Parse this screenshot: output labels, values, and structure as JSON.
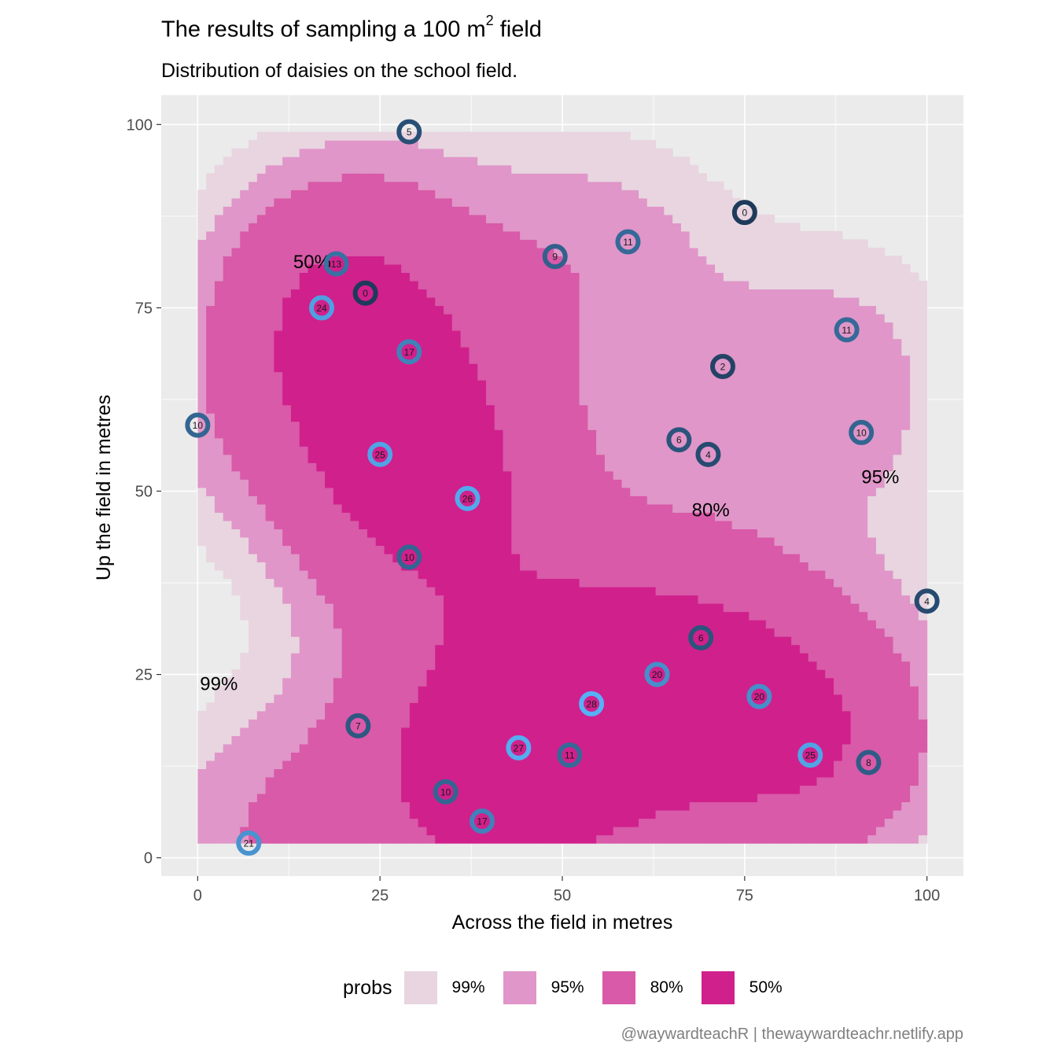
{
  "title": {
    "main": "The results of sampling a 100 m",
    "sup": "2",
    "tail": " field"
  },
  "subtitle": "Distribution of daisies on the school field.",
  "caption": "@waywardteachR | thewaywardteachr.netlify.app",
  "legend": {
    "title": "probs",
    "items": [
      {
        "label": "99%",
        "color": "#e8d5e0"
      },
      {
        "label": "95%",
        "color": "#e096c8"
      },
      {
        "label": "80%",
        "color": "#d85aa8"
      },
      {
        "label": "50%",
        "color": "#d0208c"
      }
    ]
  },
  "colors": {
    "panel": "#ebebeb",
    "grid_major": "#ffffff",
    "point_low": "#1f3a5a",
    "point_high": "#56b1f7"
  },
  "chart_data": {
    "type": "density-contour with scatter",
    "xlabel": "Across the field in metres",
    "ylabel": "Up the field in metres",
    "xlim": [
      -5,
      105
    ],
    "ylim": [
      -2.5,
      104
    ],
    "x_ticks": [
      0,
      25,
      50,
      75,
      100
    ],
    "y_ticks": [
      0,
      25,
      50,
      75,
      100
    ],
    "grid": true,
    "legend_position": "bottom",
    "contour_levels": [
      "99%",
      "95%",
      "80%",
      "50%"
    ],
    "points": [
      {
        "x": 29,
        "y": 99,
        "count": 5
      },
      {
        "x": 75,
        "y": 88,
        "count": 0
      },
      {
        "x": 19,
        "y": 81,
        "count": 13
      },
      {
        "x": 49,
        "y": 82,
        "count": 9
      },
      {
        "x": 59,
        "y": 84,
        "count": 11
      },
      {
        "x": 23,
        "y": 77,
        "count": 0
      },
      {
        "x": 17,
        "y": 75,
        "count": 24
      },
      {
        "x": 29,
        "y": 69,
        "count": 17
      },
      {
        "x": 89,
        "y": 72,
        "count": 11
      },
      {
        "x": 72,
        "y": 67,
        "count": 2
      },
      {
        "x": 0,
        "y": 59,
        "count": 10
      },
      {
        "x": 91,
        "y": 58,
        "count": 10
      },
      {
        "x": 66,
        "y": 57,
        "count": 6
      },
      {
        "x": 70,
        "y": 55,
        "count": 4
      },
      {
        "x": 25,
        "y": 55,
        "count": 25
      },
      {
        "x": 37,
        "y": 49,
        "count": 26
      },
      {
        "x": 29,
        "y": 41,
        "count": 10
      },
      {
        "x": 100,
        "y": 35,
        "count": 4
      },
      {
        "x": 69,
        "y": 30,
        "count": 6
      },
      {
        "x": 63,
        "y": 25,
        "count": 20
      },
      {
        "x": 77,
        "y": 22,
        "count": 20
      },
      {
        "x": 54,
        "y": 21,
        "count": 28
      },
      {
        "x": 22,
        "y": 18,
        "count": 7
      },
      {
        "x": 44,
        "y": 15,
        "count": 27
      },
      {
        "x": 51,
        "y": 14,
        "count": 11
      },
      {
        "x": 84,
        "y": 14,
        "count": 25
      },
      {
        "x": 92,
        "y": 13,
        "count": 8
      },
      {
        "x": 34,
        "y": 9,
        "count": 10
      },
      {
        "x": 39,
        "y": 5,
        "count": 17
      },
      {
        "x": 7,
        "y": 2,
        "count": 21
      }
    ]
  }
}
